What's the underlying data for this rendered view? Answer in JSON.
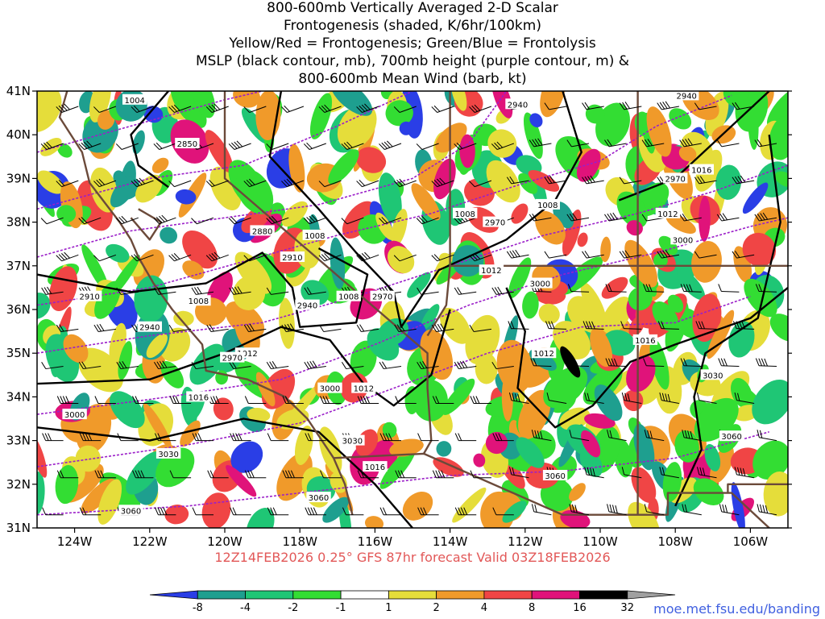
{
  "title": {
    "lines": [
      "800-600mb Vertically Averaged 2-D Scalar",
      "Frontogenesis (shaded, K/6hr/100km)",
      "Yellow/Red = Frontogenesis;  Green/Blue = Frontolysis",
      "MSLP (black contour, mb), 700mb height (purple contour, m) &",
      "800-600mb Mean Wind (barb, kt)"
    ]
  },
  "map": {
    "lat_labels": [
      "41N",
      "40N",
      "39N",
      "38N",
      "37N",
      "36N",
      "35N",
      "34N",
      "33N",
      "32N",
      "31N"
    ],
    "lon_labels": [
      "124W",
      "122W",
      "120W",
      "118W",
      "116W",
      "114W",
      "112W",
      "110W",
      "108W",
      "106W"
    ],
    "lat_range": [
      31,
      41
    ],
    "lon_range": [
      -125,
      -105
    ],
    "mslp_labels": [
      "1004",
      "1008",
      "1008",
      "1008",
      "1008",
      "1008",
      "1012",
      "1012",
      "1012",
      "1012",
      "1012",
      "1016",
      "1016",
      "1016",
      "1016"
    ],
    "height_labels": [
      "2850",
      "2880",
      "2910",
      "2910",
      "2940",
      "2940",
      "2940",
      "2940",
      "2970",
      "2970",
      "2970",
      "2970",
      "3000",
      "3000",
      "3000",
      "3000",
      "3030",
      "3030",
      "3030",
      "3060",
      "3060",
      "3060",
      "3060"
    ]
  },
  "colorbar": {
    "labels": [
      "-8",
      "-4",
      "-2",
      "-1",
      "1",
      "2",
      "4",
      "8",
      "16",
      "32"
    ],
    "colors": [
      "#2a3ee6",
      "#1e9f8f",
      "#1fc675",
      "#33dd33",
      "#ffffff",
      "#e5dd3a",
      "#f09a2a",
      "#f04545",
      "#e0137a",
      "#000000",
      "#a0a0a0"
    ]
  },
  "footer": {
    "text": "12Z14FEB2026 0.25° GFS 87hr forecast Valid 03Z18FEB2026"
  },
  "credit": "moe.met.fsu.edu/banding",
  "colors": {
    "mslp": "#000000",
    "height": "#9b1fc9",
    "borders": "#6b4a3a",
    "footer": "#e25858"
  }
}
